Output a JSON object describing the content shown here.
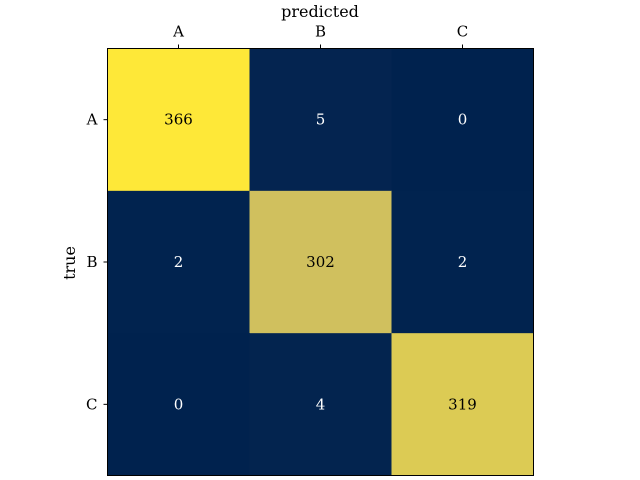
{
  "chart_data": {
    "type": "heatmap",
    "title": "",
    "xlabel": "predicted",
    "ylabel": "true",
    "x_categories": [
      "A",
      "B",
      "C"
    ],
    "y_categories": [
      "A",
      "B",
      "C"
    ],
    "values": [
      [
        366,
        5,
        0
      ],
      [
        2,
        302,
        2
      ],
      [
        0,
        4,
        319
      ]
    ],
    "x_axis_position": "top",
    "colormap": "cividis",
    "colors": {
      "low": "#00224e",
      "high": "#fee838",
      "text_on_dark": "#ffffff",
      "text_on_light": "#000000",
      "frame": "#000000"
    },
    "grid": false,
    "legend": false
  }
}
